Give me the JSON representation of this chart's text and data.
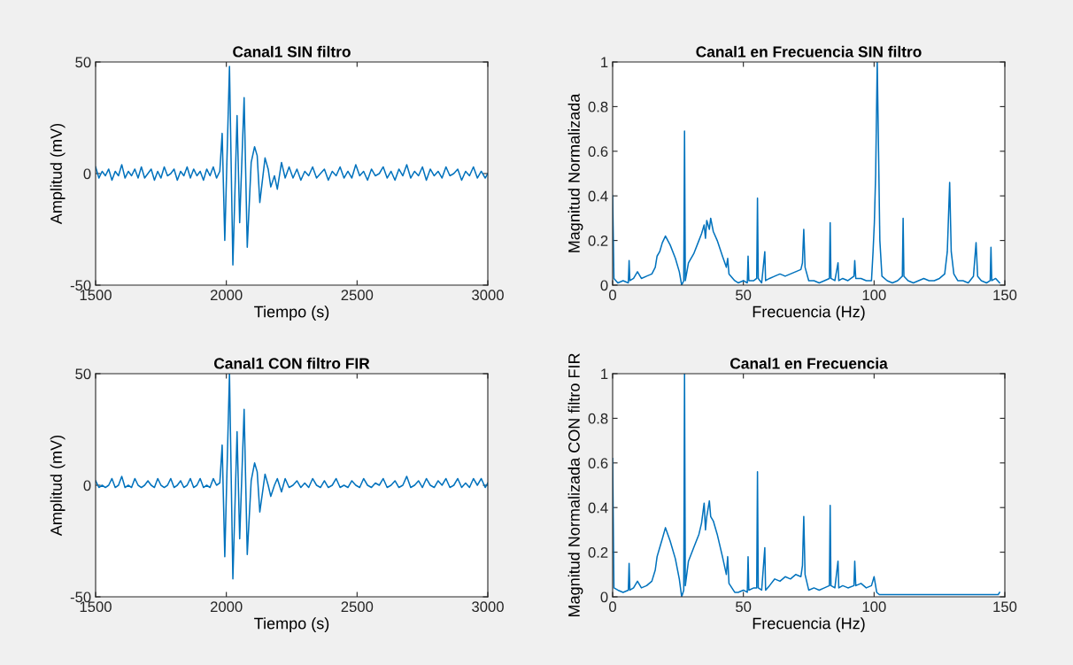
{
  "chart_data": [
    {
      "type": "line",
      "title": "Canal1 SIN filtro",
      "xlabel": "Tiempo (s)",
      "ylabel": "Amplitud (mV)",
      "xlim": [
        1500,
        3000
      ],
      "ylim": [
        -50,
        50
      ],
      "xticks": [
        1500,
        2000,
        2500,
        3000
      ],
      "yticks": [
        -50,
        0,
        50
      ],
      "series": [
        {
          "color": "#0072bd",
          "x": [
            1500,
            1512.5,
            1525,
            1537.5,
            1550,
            1562.5,
            1575,
            1587.5,
            1600,
            1612.5,
            1625,
            1637.5,
            1650,
            1662.5,
            1675,
            1687.5,
            1700,
            1712.5,
            1725,
            1737.5,
            1750,
            1762.5,
            1775,
            1787.5,
            1800,
            1812.5,
            1825,
            1837.5,
            1850,
            1862.5,
            1875,
            1887.5,
            1900,
            1912.5,
            1925,
            1937.5,
            1950,
            1962.5,
            1975,
            1984,
            1994,
            2012,
            2025,
            2041,
            2051,
            2068,
            2080,
            2095,
            2108,
            2118,
            2128,
            2148,
            2160,
            2170,
            2184,
            2195,
            2211,
            2225,
            2240,
            2255,
            2270,
            2285,
            2300,
            2315,
            2330,
            2345,
            2360,
            2375,
            2390,
            2405,
            2420,
            2435,
            2450,
            2465,
            2480,
            2495,
            2510,
            2525,
            2540,
            2555,
            2570,
            2585,
            2600,
            2615,
            2630,
            2645,
            2660,
            2675,
            2690,
            2705,
            2720,
            2735,
            2750,
            2765,
            2780,
            2795,
            2810,
            2825,
            2840,
            2855,
            2870,
            2885,
            2900,
            2915,
            2930,
            2945,
            2960,
            2975,
            2990,
            3000
          ],
          "values": [
            3,
            -2,
            1,
            -1,
            2,
            -3,
            1,
            -1,
            4,
            -2,
            1,
            -1,
            2,
            -2,
            3,
            -2,
            0,
            2,
            -3,
            1,
            -2,
            3,
            -1,
            0,
            2,
            -3,
            1,
            -1,
            3,
            -2,
            2,
            -1,
            1,
            -3,
            2,
            -1,
            3,
            -2,
            1,
            18,
            -30,
            48,
            -41,
            26,
            -22,
            34,
            -33,
            5,
            12,
            8,
            -13,
            7,
            2,
            -6,
            -1,
            -7,
            5,
            -2,
            3,
            -2,
            2,
            -3,
            1,
            -1,
            3,
            -2,
            0,
            2,
            -3,
            1,
            -1,
            3,
            -2,
            1,
            -2,
            4,
            -1,
            1,
            -3,
            2,
            -1,
            0,
            3,
            -2,
            1,
            -3,
            2,
            -1,
            4,
            -2,
            1,
            -1,
            3,
            -3,
            2,
            -1,
            1,
            -2,
            3,
            -1,
            0,
            2,
            -3,
            1,
            -1,
            3,
            -2,
            1,
            -2,
            0
          ]
        }
      ]
    },
    {
      "type": "line",
      "title": "Canal1 en Frecuencia SIN filtro",
      "xlabel": "Frecuencia (Hz)",
      "ylabel": "Magnitud Normalizada",
      "xlim": [
        0,
        150
      ],
      "ylim": [
        0,
        1
      ],
      "xticks": [
        0,
        50,
        100,
        150
      ],
      "yticks": [
        0,
        0.2,
        0.4,
        0.6,
        0.8,
        1
      ],
      "series": [
        {
          "color": "#0072bd",
          "x": [
            0,
            0.5,
            2,
            4,
            6,
            6.3,
            6.6,
            8,
            9.5,
            11,
            13,
            15,
            16.3,
            17,
            18,
            19,
            20.2,
            22,
            24,
            25.5,
            26.4,
            27.2,
            27.5,
            27.8,
            29,
            31,
            33,
            34,
            35,
            35.5,
            36,
            37,
            37.5,
            38.5,
            40,
            42,
            43.5,
            44,
            44.5,
            46.7,
            48,
            50,
            51.5,
            51.8,
            52.1,
            54,
            55.1,
            55.4,
            55.7,
            57,
            58.2,
            58.5,
            60,
            62,
            64,
            66,
            68,
            70,
            72,
            72.6,
            73.1,
            73.6,
            75,
            77,
            79,
            81,
            82.9,
            83.2,
            83.5,
            85,
            86.2,
            86.5,
            88,
            90,
            92.3,
            92.6,
            93,
            95,
            97,
            99,
            99.6,
            100.1,
            100.6,
            101.2,
            101.7,
            102.2,
            103,
            105,
            107,
            109,
            110.8,
            111.1,
            111.4,
            113,
            115,
            117,
            119,
            121,
            123,
            125,
            127,
            128,
            128.9,
            129.5,
            130.5,
            132,
            134,
            136,
            138,
            139,
            139.6,
            141,
            143,
            144.4,
            144.7,
            145,
            146.5,
            148
          ],
          "values": [
            0.4,
            0.03,
            0.01,
            0.02,
            0.01,
            0.11,
            0.02,
            0.03,
            0.06,
            0.03,
            0.04,
            0.05,
            0.08,
            0.13,
            0.15,
            0.19,
            0.22,
            0.18,
            0.12,
            0.06,
            0,
            0.02,
            0.69,
            0.02,
            0.1,
            0.14,
            0.2,
            0.23,
            0.27,
            0.21,
            0.29,
            0.25,
            0.3,
            0.24,
            0.2,
            0.13,
            0.08,
            0.12,
            0.05,
            0.02,
            0.01,
            0.02,
            0.01,
            0.13,
            0.02,
            0.02,
            0.03,
            0.39,
            0.03,
            0.01,
            0.15,
            0.02,
            0.03,
            0.04,
            0.05,
            0.04,
            0.05,
            0.06,
            0.07,
            0.1,
            0.25,
            0.08,
            0.02,
            0.02,
            0.01,
            0.02,
            0.03,
            0.28,
            0.03,
            0.02,
            0.1,
            0.02,
            0.03,
            0.02,
            0.04,
            0.11,
            0.03,
            0.03,
            0.02,
            0.02,
            0.15,
            0.28,
            0.5,
            1,
            0.6,
            0.2,
            0.04,
            0.02,
            0.01,
            0.02,
            0.04,
            0.3,
            0.04,
            0.02,
            0.01,
            0.02,
            0.03,
            0.02,
            0.02,
            0.03,
            0.05,
            0.15,
            0.46,
            0.15,
            0.05,
            0.02,
            0.02,
            0.01,
            0.04,
            0.19,
            0.04,
            0.02,
            0.01,
            0.02,
            0.17,
            0.02,
            0.03,
            0.01
          ]
        }
      ]
    },
    {
      "type": "line",
      "title": "Canal1 CON filtro FIR",
      "xlabel": "Tiempo (s)",
      "ylabel": "Amplitud (mV)",
      "xlim": [
        1500,
        3000
      ],
      "ylim": [
        -50,
        50
      ],
      "xticks": [
        1500,
        2000,
        2500,
        3000
      ],
      "yticks": [
        -50,
        0,
        50
      ],
      "series": [
        {
          "color": "#0072bd",
          "x": [
            1500,
            1512.5,
            1525,
            1537.5,
            1550,
            1562.5,
            1575,
            1587.5,
            1600,
            1612.5,
            1625,
            1637.5,
            1650,
            1662.5,
            1675,
            1687.5,
            1700,
            1712.5,
            1725,
            1737.5,
            1750,
            1762.5,
            1775,
            1787.5,
            1800,
            1812.5,
            1825,
            1837.5,
            1850,
            1862.5,
            1875,
            1887.5,
            1900,
            1912.5,
            1925,
            1937.5,
            1950,
            1962.5,
            1975,
            1984,
            1994,
            2012,
            2025,
            2041,
            2051,
            2068,
            2080,
            2095,
            2108,
            2118,
            2128,
            2148,
            2160,
            2170,
            2184,
            2195,
            2211,
            2225,
            2240,
            2255,
            2270,
            2285,
            2300,
            2315,
            2330,
            2345,
            2360,
            2375,
            2390,
            2405,
            2420,
            2435,
            2450,
            2465,
            2480,
            2495,
            2510,
            2525,
            2540,
            2555,
            2570,
            2585,
            2600,
            2615,
            2630,
            2645,
            2660,
            2675,
            2690,
            2705,
            2720,
            2735,
            2750,
            2765,
            2780,
            2795,
            2810,
            2825,
            2840,
            2855,
            2870,
            2885,
            2900,
            2915,
            2930,
            2945,
            2960,
            2975,
            2990,
            3000
          ],
          "values": [
            2,
            -1,
            0,
            -1,
            0,
            3,
            -1,
            0,
            4,
            -1,
            0,
            -1,
            3,
            0,
            -1,
            0,
            2,
            0,
            -1,
            3,
            0,
            -1,
            0,
            3,
            -1,
            0,
            2,
            -1,
            0,
            3,
            -1,
            0,
            3,
            -1,
            0,
            -1,
            3,
            0,
            1,
            18,
            -32,
            50,
            -42,
            24,
            -24,
            34,
            -31,
            2,
            10,
            6,
            -12,
            5,
            0,
            -5,
            0,
            3,
            -3,
            3,
            -1,
            0,
            2,
            -1,
            1,
            -1,
            3,
            0,
            -1,
            2,
            -1,
            0,
            3,
            -1,
            0,
            -1,
            2,
            0,
            -1,
            3,
            0,
            -1,
            1,
            0,
            3,
            -1,
            0,
            2,
            -1,
            0,
            4,
            -1,
            0,
            2,
            -1,
            3,
            0,
            -1,
            2,
            0,
            3,
            -1,
            0,
            3,
            -1,
            1,
            -1,
            3,
            0,
            3,
            -1,
            1
          ]
        }
      ]
    },
    {
      "type": "line",
      "title": "Canal1 en Frecuencia",
      "xlabel": "Frecuencia (Hz)",
      "ylabel": "Magnitud Normalizada CON filtro FIR",
      "xlim": [
        0,
        150
      ],
      "ylim": [
        0,
        1
      ],
      "xticks": [
        0,
        50,
        100,
        150
      ],
      "yticks": [
        0,
        0.2,
        0.4,
        0.6,
        0.8,
        1
      ],
      "series": [
        {
          "color": "#0072bd",
          "x": [
            0,
            0.5,
            2,
            4,
            6,
            6.3,
            6.6,
            8,
            9.5,
            11,
            13,
            15,
            16.3,
            17,
            18,
            19,
            20.2,
            22,
            24,
            25.5,
            26.4,
            27.2,
            27.5,
            27.8,
            29,
            31,
            33,
            34,
            35,
            35.5,
            36,
            37,
            37.5,
            38.5,
            40,
            42,
            43.5,
            44,
            44.5,
            46.7,
            48,
            50,
            51.5,
            51.8,
            52.1,
            54,
            55.1,
            55.4,
            55.7,
            57,
            58.2,
            58.5,
            60,
            62,
            64,
            66,
            68,
            70,
            72,
            72.6,
            73.1,
            73.6,
            75,
            77,
            79,
            81,
            82.9,
            83.2,
            83.5,
            85,
            86.2,
            86.5,
            88,
            90,
            92.3,
            92.6,
            93,
            95,
            97,
            99,
            100,
            101,
            102,
            110,
            120,
            130,
            140,
            147.5,
            148
          ],
          "values": [
            0.62,
            0.04,
            0.03,
            0.02,
            0.03,
            0.15,
            0.03,
            0.04,
            0.07,
            0.04,
            0.05,
            0.07,
            0.12,
            0.18,
            0.22,
            0.26,
            0.31,
            0.25,
            0.17,
            0.08,
            0,
            0.03,
            1,
            0.05,
            0.16,
            0.22,
            0.28,
            0.33,
            0.42,
            0.3,
            0.36,
            0.43,
            0.36,
            0.34,
            0.28,
            0.18,
            0.1,
            0.18,
            0.06,
            0.02,
            0.02,
            0.03,
            0.02,
            0.18,
            0.03,
            0.04,
            0.04,
            0.56,
            0.04,
            0.03,
            0.22,
            0.03,
            0.05,
            0.08,
            0.07,
            0.09,
            0.08,
            0.1,
            0.09,
            0.14,
            0.36,
            0.1,
            0.03,
            0.04,
            0.03,
            0.04,
            0.05,
            0.41,
            0.05,
            0.04,
            0.16,
            0.04,
            0.05,
            0.04,
            0.05,
            0.16,
            0.05,
            0.06,
            0.04,
            0.05,
            0.09,
            0.02,
            0.01,
            0.01,
            0.01,
            0.01,
            0.01,
            0.01,
            0.02
          ]
        }
      ]
    }
  ]
}
